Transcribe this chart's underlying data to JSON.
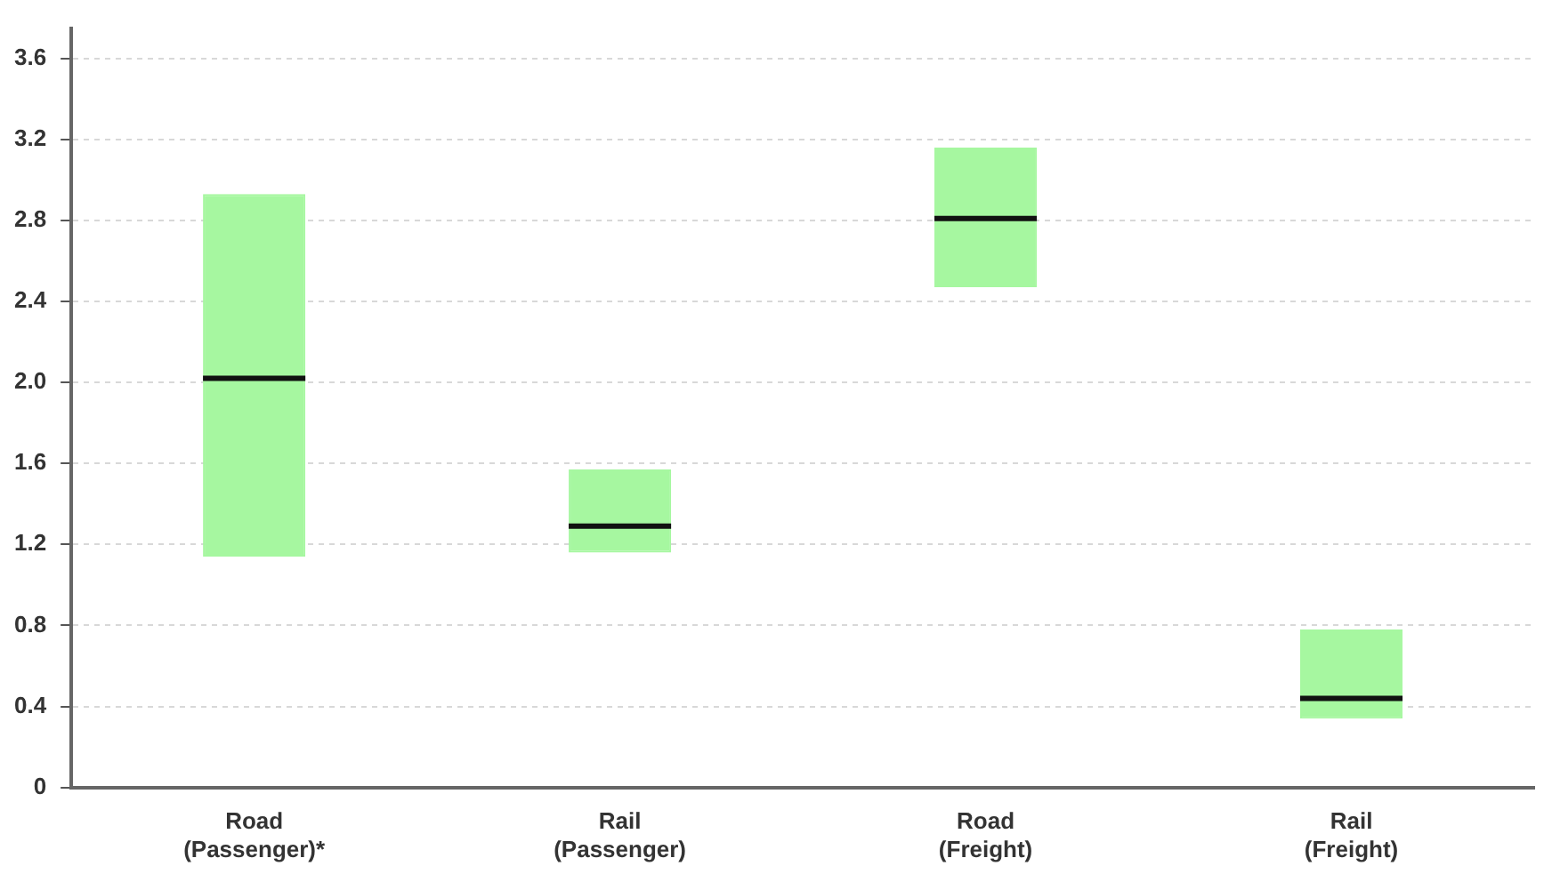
{
  "chart_data": {
    "type": "box",
    "categories": [
      "Road (Passenger)*",
      "Rail (Passenger)",
      "Road (Freight)",
      "Rail (Freight)"
    ],
    "color": "#a6f7a0",
    "boxes": [
      {
        "low": 1.14,
        "q1": 1.14,
        "median": 2.02,
        "q3": 2.93,
        "high": 2.93
      },
      {
        "low": 1.16,
        "q1": 1.16,
        "median": 1.29,
        "q3": 1.57,
        "high": 1.57
      },
      {
        "low": 2.47,
        "q1": 2.47,
        "median": 2.81,
        "q3": 3.16,
        "high": 3.16
      },
      {
        "low": 0.34,
        "q1": 0.34,
        "median": 0.44,
        "q3": 0.78,
        "high": 0.78
      }
    ],
    "ylim": [
      0,
      3.75
    ],
    "yticks": [
      0,
      0.4,
      0.8,
      1.2,
      1.6,
      {
        "value": 2,
        "label": "2.0"
      },
      2.4,
      2.8,
      3.2,
      3.6
    ],
    "grid": "y"
  }
}
